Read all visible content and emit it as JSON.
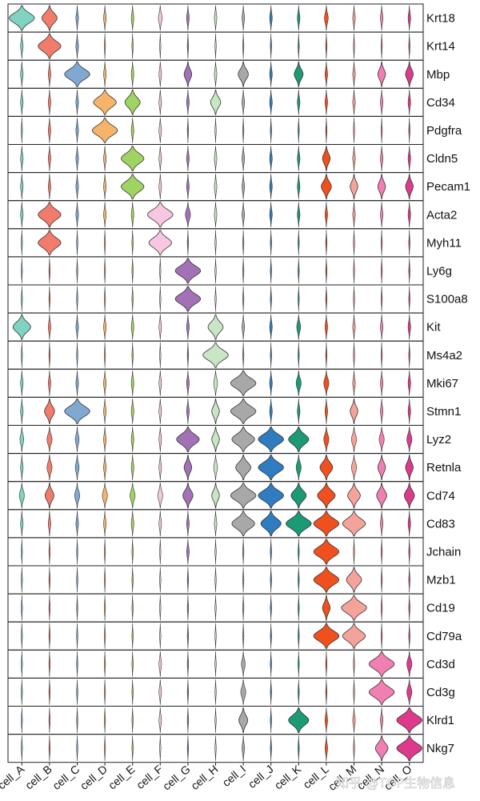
{
  "chart_data": {
    "type": "stacked-violin",
    "title": "",
    "xlabel": "",
    "ylabel": "",
    "categories": [
      "cell_A",
      "cell_B",
      "cell_C",
      "cell_D",
      "cell_E",
      "cell_F",
      "cell_G",
      "cell_H",
      "cell_I",
      "cell_J",
      "cell_K",
      "cell_L",
      "cell_M",
      "cell_N",
      "cell_O"
    ],
    "colors": [
      "#7fd3c0",
      "#f27c6b",
      "#7fa9d1",
      "#f6b36a",
      "#9fd462",
      "#f7c6e0",
      "#a371b5",
      "#c8e6c4",
      "#a8a8a8",
      "#2f7cc0",
      "#1b9a75",
      "#f0501e",
      "#f4a39a",
      "#f27fb2",
      "#de3a8b"
    ],
    "genes": [
      "Krt18",
      "Krt14",
      "Mbp",
      "Cd34",
      "Pdgfra",
      "Cldn5",
      "Pecam1",
      "Acta2",
      "Myh11",
      "Ly6g",
      "S100a8",
      "Kit",
      "Ms4a2",
      "Mki67",
      "Stmn1",
      "Lyz2",
      "Retnla",
      "Cd74",
      "Cd83",
      "Jchain",
      "Mzb1",
      "Cd19",
      "Cd79a",
      "Cd3d",
      "Cd3g",
      "Klrd1",
      "Nkg7"
    ],
    "expression": [
      [
        1,
        0.6,
        0.1,
        0.1,
        0.1,
        0.15,
        0.1,
        0.1,
        0.1,
        0.1,
        0.1,
        0.15,
        0.1,
        0.1,
        0.1
      ],
      [
        0.1,
        0.9,
        0.1,
        0.05,
        0.05,
        0.05,
        0.05,
        0.05,
        0.05,
        0.05,
        0.05,
        0.05,
        0.05,
        0.05,
        0.05
      ],
      [
        0.1,
        0.1,
        1,
        0.1,
        0.1,
        0.1,
        0.3,
        0.1,
        0.4,
        0.1,
        0.35,
        0.1,
        0.1,
        0.3,
        0.3
      ],
      [
        0.1,
        0.1,
        0.1,
        0.9,
        0.6,
        0.1,
        0.1,
        0.4,
        0.1,
        0.1,
        0.1,
        0.1,
        0.1,
        0.1,
        0.1
      ],
      [
        0.05,
        0.1,
        0.1,
        1,
        0.1,
        0.1,
        0.05,
        0.05,
        0.05,
        0.05,
        0.05,
        0.05,
        0.05,
        0.05,
        0.05
      ],
      [
        0.1,
        0.1,
        0.1,
        0.1,
        0.9,
        0.1,
        0.1,
        0.1,
        0.1,
        0.1,
        0.1,
        0.3,
        0.1,
        0.1,
        0.1
      ],
      [
        0.1,
        0.1,
        0.1,
        0.1,
        0.9,
        0.1,
        0.1,
        0.1,
        0.1,
        0.1,
        0.1,
        0.4,
        0.3,
        0.3,
        0.3
      ],
      [
        0.1,
        0.9,
        0.1,
        0.1,
        0.1,
        1,
        0.2,
        0.1,
        0.1,
        0.1,
        0.1,
        0.1,
        0.1,
        0.1,
        0.1
      ],
      [
        0.05,
        0.9,
        0.05,
        0.05,
        0.05,
        0.9,
        0.05,
        0.05,
        0.05,
        0.05,
        0.05,
        0.05,
        0.05,
        0.05,
        0.05
      ],
      [
        0.05,
        0.05,
        0.05,
        0.05,
        0.05,
        0.05,
        1,
        0.05,
        0.05,
        0.05,
        0.05,
        0.05,
        0.05,
        0.05,
        0.05
      ],
      [
        0.05,
        0.05,
        0.05,
        0.05,
        0.05,
        0.05,
        1,
        0.05,
        0.05,
        0.05,
        0.05,
        0.05,
        0.05,
        0.05,
        0.05
      ],
      [
        0.7,
        0.1,
        0.1,
        0.1,
        0.1,
        0.1,
        0.1,
        0.6,
        0.1,
        0.1,
        0.15,
        0.1,
        0.1,
        0.1,
        0.1
      ],
      [
        0.05,
        0.05,
        0.05,
        0.05,
        0.05,
        0.05,
        0.05,
        1,
        0.05,
        0.05,
        0.05,
        0.05,
        0.05,
        0.05,
        0.05
      ],
      [
        0.1,
        0.1,
        0.1,
        0.1,
        0.1,
        0.1,
        0.1,
        0.15,
        1,
        0.1,
        0.2,
        0.2,
        0.1,
        0.1,
        0.1
      ],
      [
        0.1,
        0.4,
        1,
        0.1,
        0.1,
        0.1,
        0.1,
        0.3,
        1,
        0.1,
        0.1,
        0.1,
        0.3,
        0.1,
        0.1
      ],
      [
        0.15,
        0.2,
        0.15,
        0.1,
        0.1,
        0.1,
        0.9,
        0.3,
        0.9,
        1,
        0.8,
        0.2,
        0.2,
        0.2,
        0.2
      ],
      [
        0.1,
        0.2,
        0.15,
        0.1,
        0.1,
        0.1,
        0.3,
        0.15,
        0.6,
        1,
        0.2,
        0.5,
        0.2,
        0.3,
        0.3
      ],
      [
        0.2,
        0.35,
        0.2,
        0.2,
        0.2,
        0.2,
        0.4,
        0.3,
        1,
        1,
        0.6,
        0.7,
        0.5,
        0.4,
        0.4
      ],
      [
        0.1,
        0.1,
        0.1,
        0.1,
        0.1,
        0.1,
        0.1,
        0.1,
        0.9,
        0.8,
        1,
        1,
        0.9,
        0.1,
        0.1
      ],
      [
        0.05,
        0.05,
        0.05,
        0.05,
        0.05,
        0.05,
        0.1,
        0.05,
        0.05,
        0.05,
        0.05,
        1,
        0.05,
        0.05,
        0.05
      ],
      [
        0.05,
        0.05,
        0.05,
        0.05,
        0.05,
        0.05,
        0.05,
        0.05,
        0.05,
        0.05,
        0.05,
        1,
        0.6,
        0.05,
        0.05
      ],
      [
        0.05,
        0.05,
        0.05,
        0.05,
        0.05,
        0.05,
        0.05,
        0.05,
        0.05,
        0.05,
        0.05,
        0.3,
        1,
        0.05,
        0.05
      ],
      [
        0.05,
        0.05,
        0.05,
        0.05,
        0.05,
        0.05,
        0.05,
        0.05,
        0.05,
        0.05,
        0.05,
        1,
        0.9,
        0.05,
        0.05
      ],
      [
        0.05,
        0.05,
        0.05,
        0.05,
        0.05,
        0.1,
        0.05,
        0.05,
        0.15,
        0.05,
        0.05,
        0.05,
        0.05,
        1,
        0.2
      ],
      [
        0.05,
        0.05,
        0.05,
        0.05,
        0.05,
        0.1,
        0.05,
        0.05,
        0.2,
        0.05,
        0.05,
        0.05,
        0.05,
        1,
        0.2
      ],
      [
        0.05,
        0.05,
        0.05,
        0.05,
        0.05,
        0.1,
        0.05,
        0.05,
        0.35,
        0.05,
        0.8,
        0.1,
        0.1,
        0.1,
        1
      ],
      [
        0.05,
        0.05,
        0.05,
        0.05,
        0.05,
        0.05,
        0.05,
        0.05,
        0.1,
        0.05,
        0.05,
        0.1,
        0.05,
        0.5,
        1
      ]
    ]
  },
  "watermark": "知乎 @TOP生物信息"
}
